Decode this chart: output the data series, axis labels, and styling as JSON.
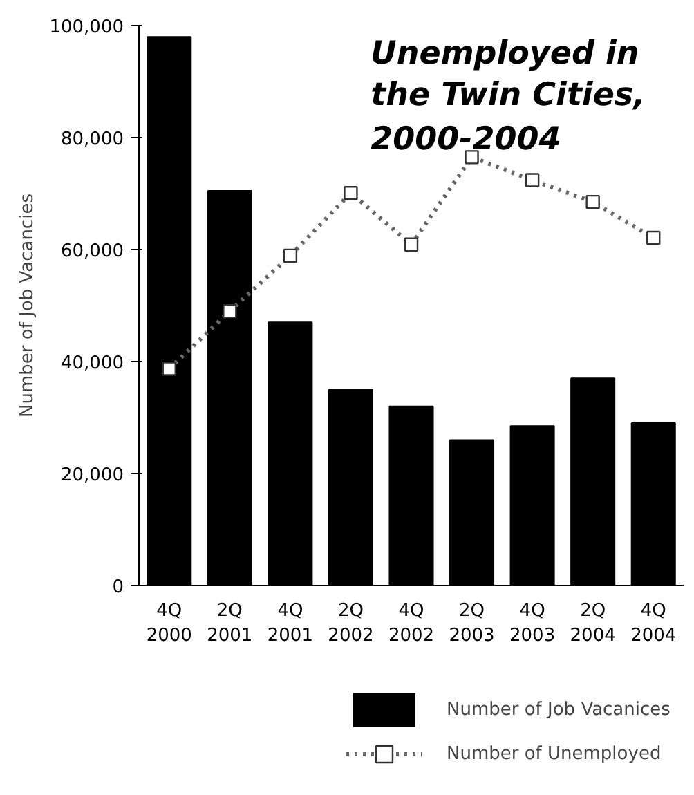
{
  "chart_data": {
    "type": "bar",
    "title": "Unemployed in the Twin Cities, 2000-2004",
    "ylabel": "Number of Job Vacancies",
    "categories": [
      "4Q 2000",
      "2Q 2001",
      "4Q 2001",
      "2Q 2002",
      "4Q 2002",
      "2Q 2003",
      "4Q 2003",
      "2Q 2004",
      "4Q 2004"
    ],
    "series": [
      {
        "name": "Number of Job Vacanices",
        "color": "#000000",
        "values": [
          98000,
          70500,
          47000,
          35000,
          32000,
          26000,
          28500,
          37000,
          29000
        ]
      },
      {
        "name": "Number of Unemployed",
        "type": "line",
        "color": "#666666",
        "marker": "square",
        "line_style": "dotted",
        "values": [
          38700,
          49000,
          58900,
          70100,
          60900,
          76500,
          72400,
          68500,
          62100
        ]
      }
    ],
    "ylim": [
      0,
      100000
    ],
    "yticks": [
      0,
      {
        "value": 20000,
        "label": "20,000"
      },
      {
        "value": 40000,
        "label": "40,000"
      },
      {
        "value": 60000,
        "label": "60,000"
      },
      {
        "value": 80000,
        "label": "80,000"
      },
      {
        "value": 100000,
        "label": "100,000"
      }
    ],
    "grid": false,
    "legend": "bottom"
  }
}
